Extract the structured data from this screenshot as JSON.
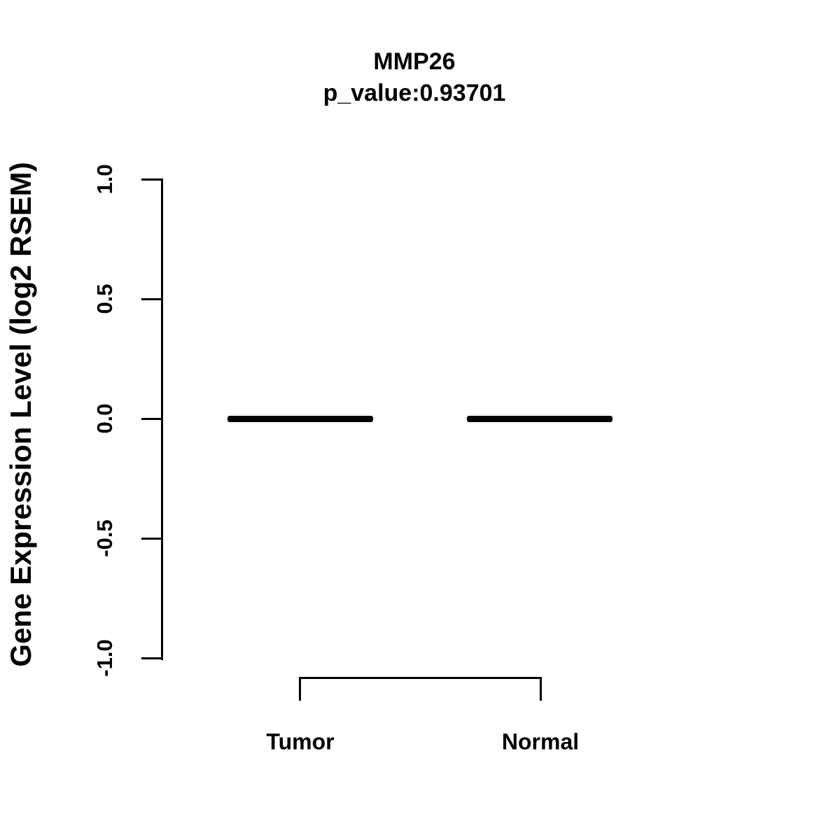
{
  "title": "MMP26",
  "subtitle": "p_value:0.93701",
  "y_axis": {
    "label": "Gene Expression Level (log2 RSEM)",
    "tick_labels": [
      "1.0",
      "0.5",
      "0.0",
      "-0.5",
      "-1.0"
    ]
  },
  "x_axis": {
    "categories": [
      "Tumor",
      "Normal"
    ]
  },
  "colors": {
    "foreground": "#000000",
    "background": "#ffffff"
  },
  "chart_data": {
    "type": "boxplot",
    "title": "MMP26",
    "subtitle": "p_value:0.93701",
    "p_value": 0.93701,
    "gene": "MMP26",
    "ylabel": "Gene Expression Level (log2 RSEM)",
    "xlabel": "",
    "ylim": [
      -1.0,
      1.0
    ],
    "yticks": [
      1.0,
      0.5,
      0.0,
      -0.5,
      -1.0
    ],
    "grid": false,
    "categories": [
      "Tumor",
      "Normal"
    ],
    "series": [
      {
        "name": "Tumor",
        "median": 0.0,
        "q1": 0.0,
        "q3": 0.0,
        "whisker_low": 0.0,
        "whisker_high": 0.0
      },
      {
        "name": "Normal",
        "median": 0.0,
        "q1": 0.0,
        "q3": 0.0,
        "whisker_low": 0.0,
        "whisker_high": 0.0
      }
    ],
    "annotations": [
      "comparison bracket spanning Tumor and Normal below the axis"
    ]
  }
}
